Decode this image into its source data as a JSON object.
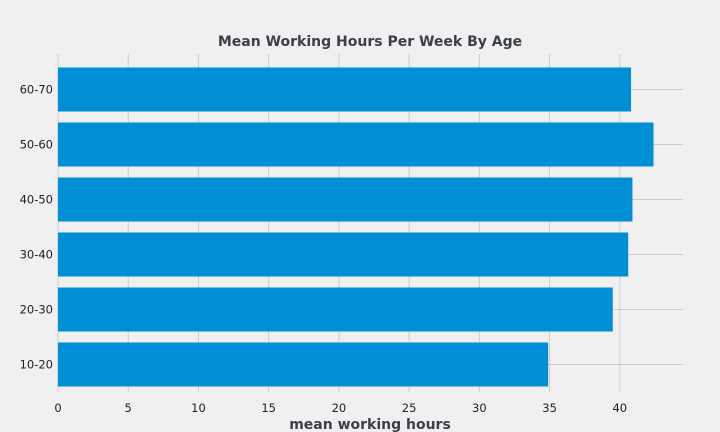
{
  "chart_data": {
    "type": "bar",
    "orientation": "horizontal",
    "title": "Mean Working Hours Per Week By Age",
    "xlabel": "mean working hours",
    "ylabel": "",
    "categories": [
      "10-20",
      "20-30",
      "30-40",
      "40-50",
      "50-60",
      "60-70"
    ],
    "values": [
      34.9,
      39.5,
      40.6,
      40.9,
      42.4,
      40.8
    ],
    "xlim": [
      0,
      44.5
    ],
    "xticks": [
      0,
      5,
      10,
      15,
      20,
      25,
      30,
      35,
      40
    ],
    "grid": true,
    "bar_color": "#008fd5",
    "background_color": "#f0f0f0",
    "grid_color": "#cbcbcb"
  }
}
